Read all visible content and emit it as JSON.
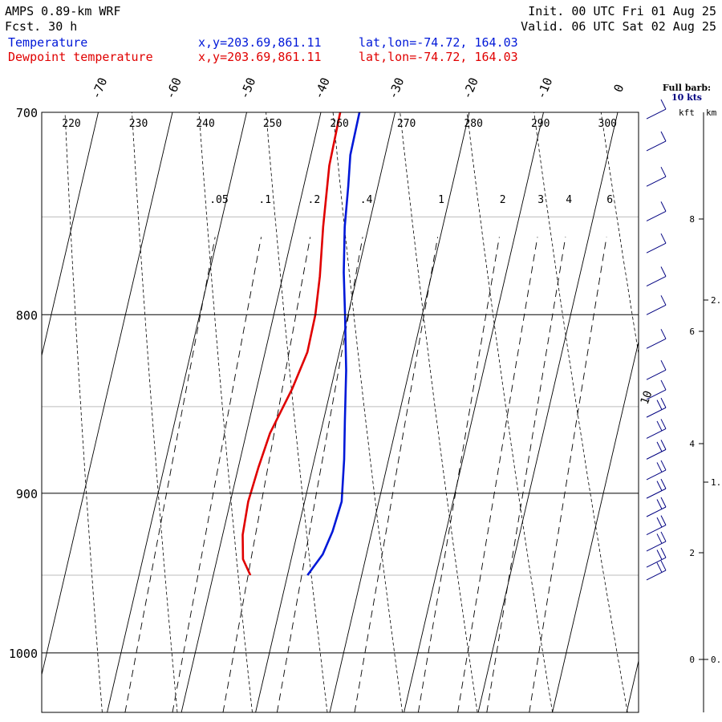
{
  "header": {
    "model": "AMPS 0.89-km WRF",
    "fcst": "Fcst.   30 h",
    "init": "Init. 00 UTC Fri 01 Aug 25",
    "valid": "Valid. 06 UTC Sat 02 Aug 25",
    "temp_label": "Temperature",
    "dew_label": "Dewpoint temperature",
    "temp_xy": "x,y=203.69,861.11",
    "temp_latlon": "lat,lon=-74.72, 164.03",
    "dew_xy": "x,y=203.69,861.11",
    "dew_latlon": "lat,lon=-74.72, 164.03"
  },
  "colors": {
    "temperature": "#0018d8",
    "dewpoint": "#e00000",
    "header_text": "#000000",
    "axes": "#000000",
    "isobar_minor": "#bdbdbd"
  },
  "barb_legend": {
    "line1": "Full barb:",
    "line2": "10 kts"
  },
  "height_axis": {
    "kft_label": "kft",
    "km_label": "km",
    "kft_ticks": [
      {
        "value": 0,
        "label": "0"
      },
      {
        "value": 2,
        "label": "2"
      },
      {
        "value": 4,
        "label": "4"
      },
      {
        "value": 6,
        "label": "6"
      },
      {
        "value": 8,
        "label": "8"
      }
    ],
    "km_ticks": [
      {
        "value": 0,
        "label": "0."
      },
      {
        "value": 1,
        "label": "1."
      },
      {
        "value": 2,
        "label": "2."
      }
    ]
  },
  "wind_profile_label": "10",
  "chart_data": {
    "type": "line",
    "subtype": "skew-T log-p",
    "y_axis": {
      "quantity": "pressure",
      "units": "hPa",
      "scale": "log",
      "range": [
        1040,
        700
      ],
      "ticks": [
        {
          "value": 700,
          "label": "700"
        },
        {
          "value": 800,
          "label": "800"
        },
        {
          "value": 900,
          "label": "900"
        },
        {
          "value": 1000,
          "label": "1000"
        }
      ]
    },
    "x_axis": {
      "quantity": "temperature",
      "units": "°C",
      "skewed": true,
      "ticks": [
        {
          "value": -70,
          "label": "-70"
        },
        {
          "value": -60,
          "label": "-60"
        },
        {
          "value": -50,
          "label": "-50"
        },
        {
          "value": -40,
          "label": "-40"
        },
        {
          "value": -30,
          "label": "-30"
        },
        {
          "value": -20,
          "label": "-20"
        },
        {
          "value": -10,
          "label": "-10"
        },
        {
          "value": 0,
          "label": "0"
        }
      ]
    },
    "dry_adiabats_K": [
      {
        "value": 220,
        "label": "220"
      },
      {
        "value": 230,
        "label": "230"
      },
      {
        "value": 240,
        "label": "240"
      },
      {
        "value": 250,
        "label": "250"
      },
      {
        "value": 260,
        "label": "260"
      },
      {
        "value": 270,
        "label": "270"
      },
      {
        "value": 280,
        "label": "280"
      },
      {
        "value": 290,
        "label": "290"
      },
      {
        "value": 300,
        "label": "300"
      }
    ],
    "mixing_ratios_gkg": [
      {
        "value": 0.05,
        "label": ".05"
      },
      {
        "value": 0.1,
        "label": ".1"
      },
      {
        "value": 0.2,
        "label": ".2"
      },
      {
        "value": 0.4,
        "label": ".4"
      },
      {
        "value": 1,
        "label": "1"
      },
      {
        "value": 2,
        "label": "2"
      },
      {
        "value": 3,
        "label": "3"
      },
      {
        "value": 4,
        "label": "4"
      },
      {
        "value": 6,
        "label": "6"
      }
    ],
    "series": [
      {
        "name": "Temperature",
        "points": [
          {
            "p": 950,
            "t": -27.3
          },
          {
            "p": 937,
            "t": -25.9
          },
          {
            "p": 923,
            "t": -25.3
          },
          {
            "p": 905,
            "t": -25.0
          },
          {
            "p": 880,
            "t": -26.0
          },
          {
            "p": 858,
            "t": -27.1
          },
          {
            "p": 830,
            "t": -28.5
          },
          {
            "p": 800,
            "t": -30.4
          },
          {
            "p": 778,
            "t": -31.9
          },
          {
            "p": 755,
            "t": -33.2
          },
          {
            "p": 735,
            "t": -34.0
          },
          {
            "p": 720,
            "t": -34.7
          },
          {
            "p": 700,
            "t": -34.8
          }
        ]
      },
      {
        "name": "Dewpoint temperature",
        "points": [
          {
            "p": 950,
            "t": -35.0
          },
          {
            "p": 940,
            "t": -36.5
          },
          {
            "p": 925,
            "t": -37.3
          },
          {
            "p": 905,
            "t": -37.6
          },
          {
            "p": 885,
            "t": -37.3
          },
          {
            "p": 865,
            "t": -36.8
          },
          {
            "p": 840,
            "t": -35.2
          },
          {
            "p": 820,
            "t": -34.3
          },
          {
            "p": 800,
            "t": -34.4
          },
          {
            "p": 780,
            "t": -35.0
          },
          {
            "p": 755,
            "t": -36.1
          },
          {
            "p": 725,
            "t": -37.2
          },
          {
            "p": 700,
            "t": -37.4
          }
        ]
      }
    ],
    "wind_barbs_kt": [
      {
        "p": 953,
        "speed": 20
      },
      {
        "p": 945,
        "speed": 20
      },
      {
        "p": 935,
        "speed": 20
      },
      {
        "p": 925,
        "speed": 20
      },
      {
        "p": 914,
        "speed": 20
      },
      {
        "p": 903,
        "speed": 20
      },
      {
        "p": 892,
        "speed": 20
      },
      {
        "p": 880,
        "speed": 20
      },
      {
        "p": 868,
        "speed": 20
      },
      {
        "p": 856,
        "speed": 20
      },
      {
        "p": 846,
        "speed": 10
      },
      {
        "p": 835,
        "speed": 10
      },
      {
        "p": 818,
        "speed": 10
      },
      {
        "p": 800,
        "speed": 10
      },
      {
        "p": 785,
        "speed": 10
      },
      {
        "p": 768,
        "speed": 10
      },
      {
        "p": 752,
        "speed": 10
      },
      {
        "p": 735,
        "speed": 10
      },
      {
        "p": 718,
        "speed": 10
      },
      {
        "p": 703,
        "speed": 10
      }
    ]
  }
}
